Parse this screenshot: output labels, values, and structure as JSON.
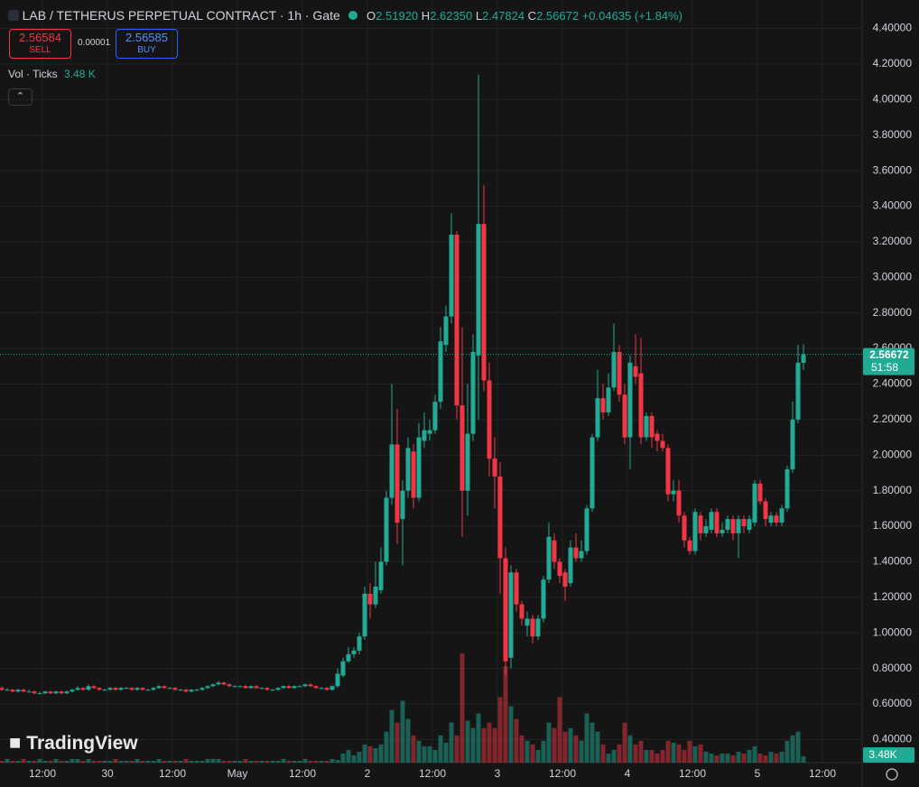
{
  "header": {
    "symbol": "LAB / TETHERUS PERPETUAL CONTRACT · 1h · Gate",
    "o_label": "O",
    "o": "2.51920",
    "h_label": "H",
    "h": "2.62350",
    "l_label": "L",
    "l": "2.47824",
    "c_label": "C",
    "c": "2.56672",
    "change": "+0.04635 (+1.84%)",
    "sell_price": "2.56584",
    "sell": "SELL",
    "spread": "0.00001",
    "buy_price": "2.56585",
    "buy": "BUY",
    "vol_title": "Vol · Ticks",
    "vol_value": "3.48 K",
    "watermark": "TradingView"
  },
  "chart_data": {
    "type": "candlestick",
    "up_color": "#22ab94",
    "down_color": "#f23645",
    "grid": true,
    "xlim": [
      -0.333,
      158.83
    ],
    "ylim": [
      0.27,
      4.56
    ],
    "volume_lim": [
      0,
      62
    ],
    "xticks": [
      {
        "value": 7.5,
        "label": "12:00"
      },
      {
        "value": 19.5,
        "label": "30"
      },
      {
        "value": 31.5,
        "label": "12:00"
      },
      {
        "value": 43.5,
        "label": "May"
      },
      {
        "value": 55.5,
        "label": "12:00"
      },
      {
        "value": 67.5,
        "label": "2"
      },
      {
        "value": 79.5,
        "label": "12:00"
      },
      {
        "value": 91.5,
        "label": "3"
      },
      {
        "value": 103.5,
        "label": "12:00"
      },
      {
        "value": 115.5,
        "label": "4"
      },
      {
        "value": 127.5,
        "label": "12:00"
      },
      {
        "value": 139.5,
        "label": "5"
      },
      {
        "value": 151.5,
        "label": "12:00"
      }
    ],
    "yticks": [
      {
        "value": 0.4,
        "label": "0.40000"
      },
      {
        "value": 0.6,
        "label": "0.60000"
      },
      {
        "value": 0.8,
        "label": "0.80000"
      },
      {
        "value": 1.0,
        "label": "1.00000"
      },
      {
        "value": 1.2,
        "label": "1.20000"
      },
      {
        "value": 1.4,
        "label": "1.40000"
      },
      {
        "value": 1.6,
        "label": "1.60000"
      },
      {
        "value": 1.8,
        "label": "1.80000"
      },
      {
        "value": 2.0,
        "label": "2.00000"
      },
      {
        "value": 2.2,
        "label": "2.20000"
      },
      {
        "value": 2.4,
        "label": "2.40000"
      },
      {
        "value": 2.6,
        "label": "2.60000"
      },
      {
        "value": 2.8,
        "label": "2.80000"
      },
      {
        "value": 3.0,
        "label": "3.00000"
      },
      {
        "value": 3.2,
        "label": "3.20000"
      },
      {
        "value": 3.4,
        "label": "3.40000"
      },
      {
        "value": 3.6,
        "label": "3.60000"
      },
      {
        "value": 3.8,
        "label": "3.80000"
      },
      {
        "value": 4.0,
        "label": "4.00000"
      },
      {
        "value": 4.2,
        "label": "4.20000"
      },
      {
        "value": 4.4,
        "label": "4.40000"
      }
    ],
    "price_label": {
      "value": 2.56672,
      "label": "2.56672"
    },
    "countdown": "51:58",
    "volume_label": {
      "value": 3.48,
      "label": "3.48K"
    },
    "ohlc": [
      [
        0.69,
        0.7,
        0.675,
        0.68
      ],
      [
        0.68,
        0.69,
        0.675,
        0.68
      ],
      [
        0.68,
        0.685,
        0.665,
        0.67
      ],
      [
        0.67,
        0.685,
        0.665,
        0.68
      ],
      [
        0.68,
        0.685,
        0.665,
        0.67
      ],
      [
        0.67,
        0.68,
        0.665,
        0.67
      ],
      [
        0.67,
        0.675,
        0.655,
        0.66
      ],
      [
        0.66,
        0.67,
        0.655,
        0.66
      ],
      [
        0.66,
        0.675,
        0.655,
        0.67
      ],
      [
        0.67,
        0.675,
        0.655,
        0.66
      ],
      [
        0.66,
        0.675,
        0.655,
        0.67
      ],
      [
        0.67,
        0.675,
        0.655,
        0.66
      ],
      [
        0.66,
        0.675,
        0.655,
        0.67
      ],
      [
        0.67,
        0.685,
        0.665,
        0.68
      ],
      [
        0.68,
        0.7,
        0.675,
        0.69
      ],
      [
        0.69,
        0.695,
        0.675,
        0.68
      ],
      [
        0.68,
        0.71,
        0.675,
        0.7
      ],
      [
        0.7,
        0.705,
        0.685,
        0.69
      ],
      [
        0.69,
        0.695,
        0.675,
        0.68
      ],
      [
        0.68,
        0.685,
        0.675,
        0.68
      ],
      [
        0.68,
        0.695,
        0.675,
        0.69
      ],
      [
        0.69,
        0.695,
        0.675,
        0.68
      ],
      [
        0.68,
        0.695,
        0.675,
        0.69
      ],
      [
        0.69,
        0.695,
        0.685,
        0.69
      ],
      [
        0.69,
        0.695,
        0.675,
        0.68
      ],
      [
        0.68,
        0.695,
        0.675,
        0.69
      ],
      [
        0.69,
        0.695,
        0.675,
        0.68
      ],
      [
        0.68,
        0.685,
        0.675,
        0.68
      ],
      [
        0.68,
        0.695,
        0.675,
        0.69
      ],
      [
        0.69,
        0.705,
        0.685,
        0.7
      ],
      [
        0.7,
        0.705,
        0.685,
        0.69
      ],
      [
        0.69,
        0.695,
        0.685,
        0.69
      ],
      [
        0.69,
        0.695,
        0.675,
        0.68
      ],
      [
        0.68,
        0.685,
        0.675,
        0.68
      ],
      [
        0.68,
        0.685,
        0.665,
        0.67
      ],
      [
        0.67,
        0.685,
        0.665,
        0.68
      ],
      [
        0.68,
        0.685,
        0.675,
        0.68
      ],
      [
        0.68,
        0.695,
        0.675,
        0.69
      ],
      [
        0.69,
        0.705,
        0.685,
        0.7
      ],
      [
        0.7,
        0.715,
        0.695,
        0.71
      ],
      [
        0.71,
        0.73,
        0.705,
        0.72
      ],
      [
        0.72,
        0.725,
        0.705,
        0.71
      ],
      [
        0.71,
        0.715,
        0.695,
        0.7
      ],
      [
        0.7,
        0.705,
        0.695,
        0.7
      ],
      [
        0.7,
        0.705,
        0.695,
        0.7
      ],
      [
        0.7,
        0.705,
        0.685,
        0.69
      ],
      [
        0.69,
        0.705,
        0.685,
        0.7
      ],
      [
        0.7,
        0.705,
        0.685,
        0.69
      ],
      [
        0.69,
        0.695,
        0.685,
        0.69
      ],
      [
        0.69,
        0.695,
        0.675,
        0.68
      ],
      [
        0.68,
        0.685,
        0.675,
        0.68
      ],
      [
        0.68,
        0.695,
        0.675,
        0.69
      ],
      [
        0.69,
        0.705,
        0.685,
        0.7
      ],
      [
        0.7,
        0.705,
        0.685,
        0.69
      ],
      [
        0.69,
        0.705,
        0.685,
        0.7
      ],
      [
        0.7,
        0.705,
        0.695,
        0.7
      ],
      [
        0.7,
        0.715,
        0.695,
        0.71
      ],
      [
        0.71,
        0.715,
        0.695,
        0.7
      ],
      [
        0.7,
        0.705,
        0.685,
        0.69
      ],
      [
        0.69,
        0.695,
        0.685,
        0.69
      ],
      [
        0.69,
        0.695,
        0.675,
        0.68
      ],
      [
        0.68,
        0.705,
        0.675,
        0.7
      ],
      [
        0.7,
        0.8,
        0.69,
        0.77
      ],
      [
        0.76,
        0.86,
        0.75,
        0.84
      ],
      [
        0.84,
        0.92,
        0.83,
        0.88
      ],
      [
        0.88,
        0.92,
        0.86,
        0.9
      ],
      [
        0.9,
        1.0,
        0.88,
        0.98
      ],
      [
        0.98,
        1.26,
        0.96,
        1.22
      ],
      [
        1.22,
        1.28,
        1.08,
        1.16
      ],
      [
        1.16,
        1.4,
        1.14,
        1.26
      ],
      [
        1.24,
        1.48,
        1.22,
        1.4
      ],
      [
        1.4,
        1.8,
        1.38,
        1.76
      ],
      [
        1.76,
        2.4,
        1.72,
        2.06
      ],
      [
        2.06,
        2.26,
        1.5,
        1.62
      ],
      [
        1.64,
        1.86,
        1.38,
        1.8
      ],
      [
        1.8,
        2.1,
        1.76,
        2.04
      ],
      [
        2.02,
        2.06,
        1.7,
        1.76
      ],
      [
        1.76,
        2.18,
        1.74,
        2.1
      ],
      [
        2.08,
        2.24,
        2.04,
        2.14
      ],
      [
        2.12,
        2.2,
        2.08,
        2.14
      ],
      [
        2.14,
        2.34,
        2.12,
        2.3
      ],
      [
        2.3,
        2.72,
        2.26,
        2.64
      ],
      [
        2.62,
        2.84,
        2.58,
        2.78
      ],
      [
        2.78,
        3.36,
        2.74,
        3.24
      ],
      [
        3.24,
        3.26,
        2.2,
        2.28
      ],
      [
        2.28,
        2.72,
        1.54,
        1.8
      ],
      [
        1.8,
        2.4,
        1.66,
        2.12
      ],
      [
        2.12,
        2.68,
        2.08,
        2.58
      ],
      [
        2.56,
        4.14,
        2.2,
        3.3
      ],
      [
        3.3,
        3.52,
        2.36,
        2.42
      ],
      [
        2.42,
        2.52,
        1.88,
        1.98
      ],
      [
        1.98,
        2.1,
        1.7,
        1.88
      ],
      [
        1.88,
        1.96,
        1.22,
        1.42
      ],
      [
        1.42,
        1.48,
        0.76,
        0.84
      ],
      [
        0.86,
        1.38,
        0.8,
        1.34
      ],
      [
        1.34,
        1.36,
        1.12,
        1.16
      ],
      [
        1.16,
        1.18,
        1.04,
        1.08
      ],
      [
        1.04,
        1.12,
        0.98,
        1.08
      ],
      [
        1.08,
        1.1,
        0.94,
        0.98
      ],
      [
        0.98,
        1.1,
        0.96,
        1.08
      ],
      [
        1.08,
        1.32,
        1.06,
        1.3
      ],
      [
        1.3,
        1.62,
        1.28,
        1.54
      ],
      [
        1.52,
        1.56,
        1.36,
        1.4
      ],
      [
        1.4,
        1.42,
        1.28,
        1.32
      ],
      [
        1.34,
        1.36,
        1.18,
        1.26
      ],
      [
        1.28,
        1.52,
        1.26,
        1.48
      ],
      [
        1.48,
        1.56,
        1.4,
        1.42
      ],
      [
        1.42,
        1.52,
        1.4,
        1.46
      ],
      [
        1.46,
        1.72,
        1.44,
        1.7
      ],
      [
        1.7,
        2.12,
        1.68,
        2.1
      ],
      [
        2.1,
        2.48,
        2.08,
        2.32
      ],
      [
        2.32,
        2.4,
        2.2,
        2.24
      ],
      [
        2.24,
        2.46,
        2.22,
        2.38
      ],
      [
        2.38,
        2.74,
        2.36,
        2.58
      ],
      [
        2.58,
        2.62,
        2.3,
        2.34
      ],
      [
        2.34,
        2.4,
        2.06,
        2.1
      ],
      [
        2.1,
        2.56,
        1.92,
        2.52
      ],
      [
        2.5,
        2.68,
        2.4,
        2.44
      ],
      [
        2.46,
        2.66,
        2.06,
        2.1
      ],
      [
        2.1,
        2.24,
        2.08,
        2.22
      ],
      [
        2.22,
        2.24,
        2.04,
        2.1
      ],
      [
        2.12,
        2.14,
        2.02,
        2.08
      ],
      [
        2.08,
        2.12,
        2.02,
        2.04
      ],
      [
        2.04,
        2.06,
        1.74,
        1.78
      ],
      [
        1.78,
        1.86,
        1.74,
        1.8
      ],
      [
        1.8,
        1.86,
        1.62,
        1.66
      ],
      [
        1.66,
        1.68,
        1.48,
        1.52
      ],
      [
        1.52,
        1.54,
        1.44,
        1.46
      ],
      [
        1.46,
        1.7,
        1.44,
        1.68
      ],
      [
        1.66,
        1.68,
        1.52,
        1.56
      ],
      [
        1.56,
        1.64,
        1.54,
        1.6
      ],
      [
        1.58,
        1.7,
        1.56,
        1.68
      ],
      [
        1.68,
        1.7,
        1.54,
        1.56
      ],
      [
        1.56,
        1.62,
        1.54,
        1.58
      ],
      [
        1.58,
        1.66,
        1.56,
        1.64
      ],
      [
        1.64,
        1.66,
        1.52,
        1.56
      ],
      [
        1.56,
        1.66,
        1.42,
        1.64
      ],
      [
        1.64,
        1.66,
        1.56,
        1.6
      ],
      [
        1.58,
        1.66,
        1.56,
        1.64
      ],
      [
        1.62,
        1.86,
        1.6,
        1.84
      ],
      [
        1.84,
        1.86,
        1.72,
        1.74
      ],
      [
        1.74,
        1.76,
        1.6,
        1.64
      ],
      [
        1.62,
        1.68,
        1.6,
        1.66
      ],
      [
        1.66,
        1.68,
        1.6,
        1.62
      ],
      [
        1.62,
        1.72,
        1.6,
        1.7
      ],
      [
        1.7,
        1.94,
        1.68,
        1.92
      ],
      [
        1.92,
        2.3,
        1.9,
        2.2
      ],
      [
        2.2,
        2.62,
        2.18,
        2.52
      ],
      [
        2.5192,
        2.6235,
        2.47824,
        2.56672
      ]
    ],
    "volume": [
      1,
      2,
      1,
      1,
      2,
      1,
      1,
      2,
      1,
      1,
      2,
      1,
      1,
      2,
      2,
      1,
      2,
      1,
      1,
      1,
      1,
      2,
      1,
      1,
      1,
      2,
      1,
      1,
      1,
      2,
      1,
      1,
      1,
      1,
      2,
      1,
      1,
      1,
      2,
      2,
      2,
      1,
      1,
      1,
      1,
      2,
      1,
      1,
      1,
      1,
      1,
      1,
      2,
      1,
      1,
      1,
      2,
      1,
      1,
      1,
      1,
      2,
      1.5,
      5,
      7,
      4,
      6,
      10,
      9,
      8,
      10,
      17,
      29,
      22,
      34,
      24,
      15,
      12,
      9,
      9,
      7,
      15,
      11,
      22,
      15,
      60,
      23,
      19,
      27,
      19,
      22,
      19,
      36,
      53,
      31,
      24,
      15,
      12,
      10,
      7,
      12,
      22,
      19,
      36,
      17,
      19,
      15,
      12,
      27,
      22,
      17,
      10,
      5,
      7,
      10,
      22,
      15,
      10,
      12,
      7,
      7,
      5,
      7,
      12,
      11,
      10,
      7,
      12,
      9,
      10,
      6,
      5,
      4,
      5,
      5,
      4,
      6,
      5,
      7,
      9,
      5,
      4,
      6,
      5,
      6,
      12,
      15,
      17,
      3.48
    ]
  }
}
